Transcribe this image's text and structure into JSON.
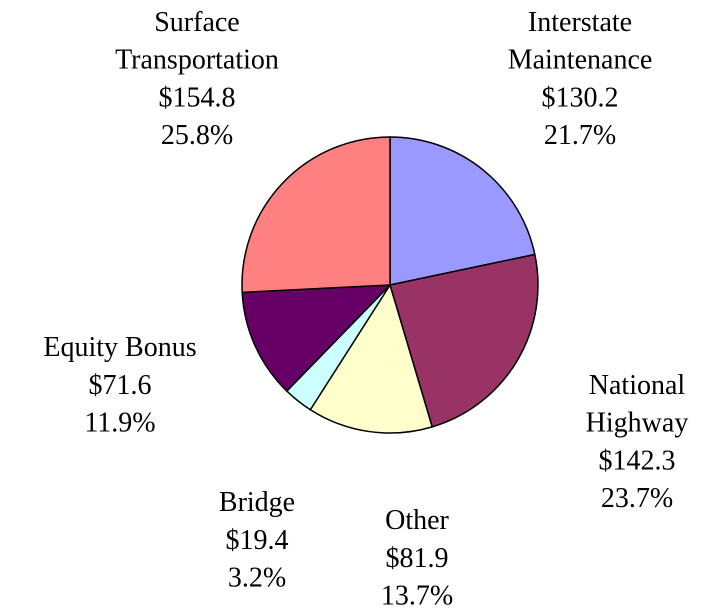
{
  "chart_data": {
    "type": "pie",
    "categories": [
      "Interstate\nMaintenance",
      "National\nHighway",
      "Other",
      "Bridge",
      "Equity Bonus",
      "Surface\nTransportation"
    ],
    "values": [
      130.2,
      142.3,
      81.9,
      19.4,
      71.6,
      154.8
    ],
    "value_labels": [
      "$130.2",
      "$142.3",
      "$81.9",
      "$19.4",
      "$71.6",
      "$154.8"
    ],
    "percentages": [
      21.7,
      23.7,
      13.7,
      3.2,
      11.9,
      25.8
    ],
    "percentage_labels": [
      "21.7%",
      "23.7%",
      "13.7%",
      "3.2%",
      "11.9%",
      "25.8%"
    ],
    "colors": [
      "#9999ff",
      "#993366",
      "#ffffcc",
      "#ccffff",
      "#660066",
      "#ff8080"
    ]
  }
}
